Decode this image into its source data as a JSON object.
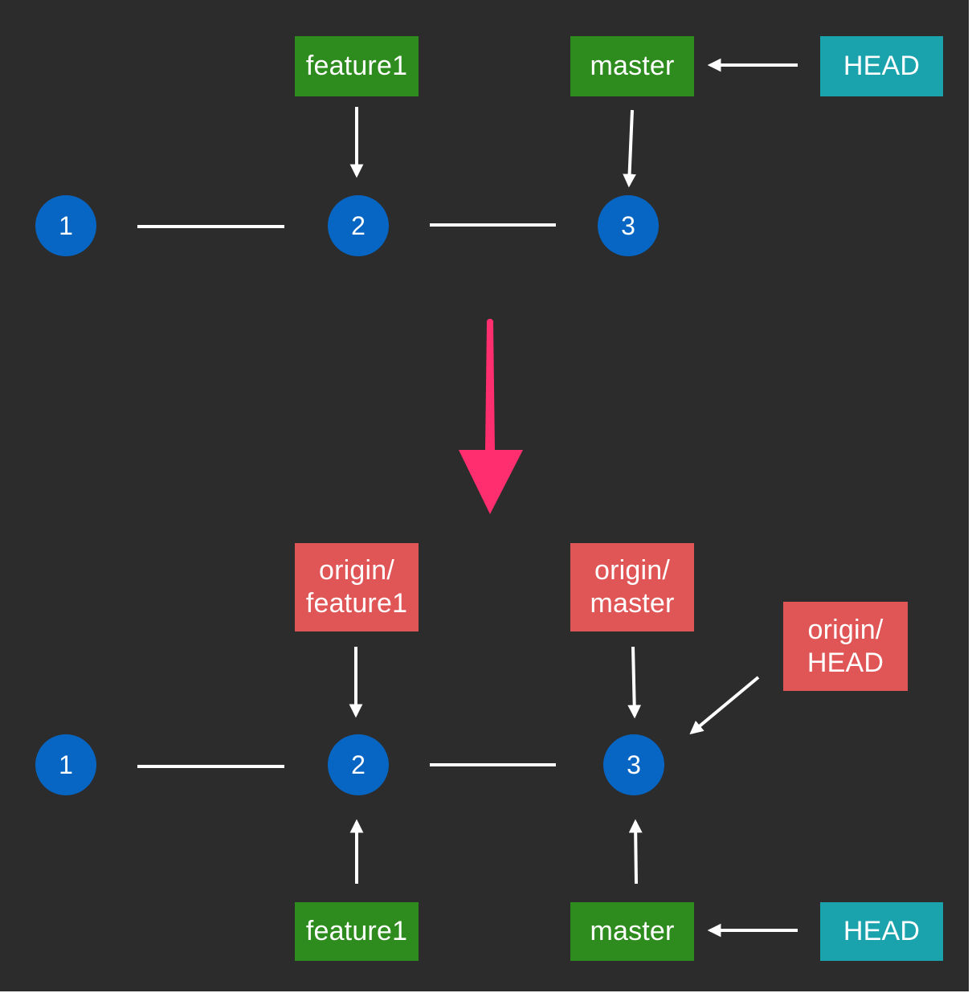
{
  "colors": {
    "background": "#2c2c2c",
    "local_branch": "#2e8b1e",
    "head": "#1aa3ad",
    "remote_branch": "#e05555",
    "commit": "#0766c4",
    "connector": "#ffffff",
    "transition_arrow": "#ff2e6e"
  },
  "before": {
    "branch_feature1": "feature1",
    "branch_master": "master",
    "head": "HEAD",
    "commits": [
      "1",
      "2",
      "3"
    ]
  },
  "after": {
    "remote_feature1": [
      "origin/",
      "feature1"
    ],
    "remote_master": [
      "origin/",
      "master"
    ],
    "remote_head": [
      "origin/",
      "HEAD"
    ],
    "commits": [
      "1",
      "2",
      "3"
    ],
    "branch_feature1": "feature1",
    "branch_master": "master",
    "head": "HEAD"
  }
}
